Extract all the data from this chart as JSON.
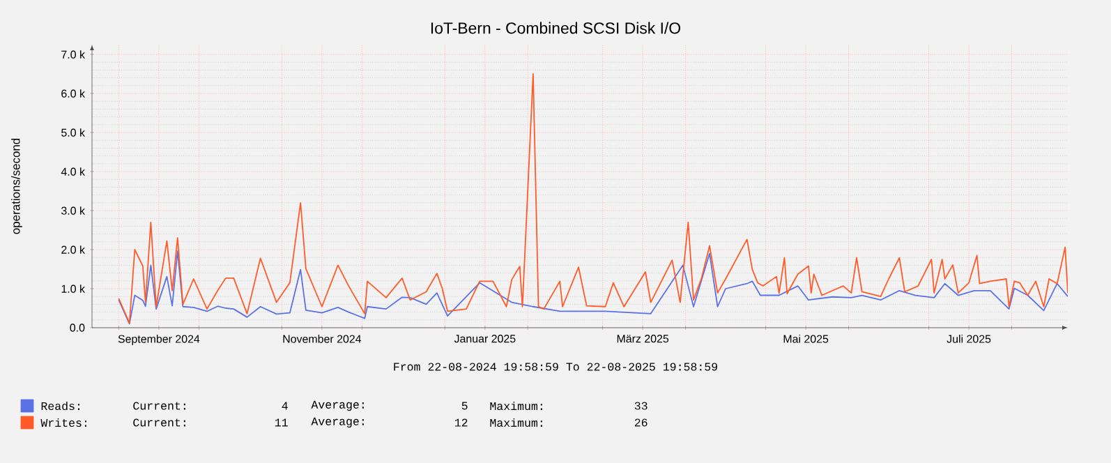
{
  "chart_data": {
    "type": "line",
    "title": "IoT-Bern - Combined SCSI Disk I/O",
    "ylabel": "operations/second",
    "xlim": [
      "2024-08-22",
      "2025-08-22"
    ],
    "xticks": [
      {
        "value": "2024-09-01",
        "label": null
      },
      {
        "value": "2024-09-16",
        "label": "September 2024"
      },
      {
        "value": "2024-10-01",
        "label": null
      },
      {
        "value": "2024-11-01",
        "label": null
      },
      {
        "value": "2024-11-16",
        "label": "November 2024"
      },
      {
        "value": "2024-12-01",
        "label": null
      },
      {
        "value": "2025-01-01",
        "label": null
      },
      {
        "value": "2025-01-16",
        "label": "Januar 2025"
      },
      {
        "value": "2025-02-01",
        "label": null
      },
      {
        "value": "2025-03-01",
        "label": null
      },
      {
        "value": "2025-03-16",
        "label": "März 2025"
      },
      {
        "value": "2025-04-01",
        "label": null
      },
      {
        "value": "2025-05-01",
        "label": null
      },
      {
        "value": "2025-05-16",
        "label": "Mai 2025"
      },
      {
        "value": "2025-06-01",
        "label": null
      },
      {
        "value": "2025-07-01",
        "label": null
      },
      {
        "value": "2025-07-16",
        "label": "Juli 2025"
      },
      {
        "value": "2025-08-01",
        "label": null
      }
    ],
    "ylim": [
      0,
      7250
    ],
    "yticks": [
      {
        "value": 0,
        "label": "0.0"
      },
      {
        "value": 1000,
        "label": "1.0 k"
      },
      {
        "value": 2000,
        "label": "2.0 k"
      },
      {
        "value": 3000,
        "label": "3.0 k"
      },
      {
        "value": 4000,
        "label": "4.0 k"
      },
      {
        "value": 5000,
        "label": "5.0 k"
      },
      {
        "value": 6000,
        "label": "6.0 k"
      },
      {
        "value": 7000,
        "label": "7.0 k"
      }
    ],
    "grid": true,
    "legend": "bottom",
    "marker": "none",
    "line_style": "solid",
    "series": [
      {
        "name": "Reads:",
        "color": "#5a72e8",
        "x": [
          "2024-09-01",
          "2024-09-05",
          "2024-09-07",
          "2024-09-10",
          "2024-09-11",
          "2024-09-13",
          "2024-09-15",
          "2024-09-19",
          "2024-09-21",
          "2024-09-23",
          "2024-09-25",
          "2024-09-29",
          "2024-10-04",
          "2024-10-08",
          "2024-10-11",
          "2024-10-14",
          "2024-10-19",
          "2024-10-24",
          "2024-10-30",
          "2024-11-04",
          "2024-11-08",
          "2024-11-10",
          "2024-11-16",
          "2024-11-22",
          "2024-11-26",
          "2024-12-02",
          "2024-12-03",
          "2024-12-10",
          "2024-12-16",
          "2024-12-19",
          "2024-12-25",
          "2024-12-29",
          "2025-01-02",
          "2025-01-14",
          "2025-01-26",
          "2025-02-03",
          "2025-02-13",
          "2025-03-02",
          "2025-03-19",
          "2025-03-31",
          "2025-04-04",
          "2025-04-10",
          "2025-04-13",
          "2025-04-16",
          "2025-04-24",
          "2025-04-26",
          "2025-04-29",
          "2025-05-06",
          "2025-05-13",
          "2025-05-17",
          "2025-05-26",
          "2025-06-02",
          "2025-06-06",
          "2025-06-13",
          "2025-06-20",
          "2025-06-26",
          "2025-07-03",
          "2025-07-07",
          "2025-07-12",
          "2025-07-18",
          "2025-07-24",
          "2025-07-31",
          "2025-08-02",
          "2025-08-07",
          "2025-08-13",
          "2025-08-18",
          "2025-08-22"
        ],
        "values": [
          710,
          100,
          830,
          700,
          550,
          1600,
          480,
          1310,
          560,
          1960,
          540,
          520,
          420,
          550,
          500,
          480,
          270,
          540,
          350,
          380,
          1490,
          450,
          380,
          520,
          400,
          240,
          540,
          480,
          780,
          770,
          600,
          890,
          300,
          1150,
          650,
          540,
          420,
          420,
          360,
          1600,
          540,
          1900,
          540,
          1000,
          1130,
          1190,
          830,
          830,
          1070,
          710,
          790,
          770,
          830,
          710,
          950,
          830,
          770,
          1130,
          830,
          950,
          950,
          480,
          1010,
          830,
          440,
          1130,
          800
        ]
      },
      {
        "name": "Writes:",
        "color": "#ff5a28",
        "x": [
          "2024-09-01",
          "2024-09-05",
          "2024-09-07",
          "2024-09-10",
          "2024-09-11",
          "2024-09-13",
          "2024-09-15",
          "2024-09-19",
          "2024-09-21",
          "2024-09-23",
          "2024-09-25",
          "2024-09-29",
          "2024-10-04",
          "2024-10-08",
          "2024-10-11",
          "2024-10-14",
          "2024-10-19",
          "2024-10-24",
          "2024-10-30",
          "2024-11-04",
          "2024-11-08",
          "2024-11-10",
          "2024-11-16",
          "2024-11-22",
          "2024-11-26",
          "2024-12-02",
          "2024-12-03",
          "2024-12-10",
          "2024-12-16",
          "2024-12-19",
          "2024-12-25",
          "2024-12-29",
          "2024-12-31",
          "2025-01-02",
          "2025-01-09",
          "2025-01-14",
          "2025-01-19",
          "2025-01-24",
          "2025-01-26",
          "2025-01-29",
          "2025-01-30",
          "2025-02-03",
          "2025-02-05",
          "2025-02-07",
          "2025-02-13",
          "2025-02-14",
          "2025-02-20",
          "2025-02-23",
          "2025-03-02",
          "2025-03-05",
          "2025-03-09",
          "2025-03-17",
          "2025-03-19",
          "2025-03-27",
          "2025-03-30",
          "2025-04-02",
          "2025-04-04",
          "2025-04-07",
          "2025-04-10",
          "2025-04-13",
          "2025-04-16",
          "2025-04-24",
          "2025-04-26",
          "2025-04-28",
          "2025-04-30",
          "2025-05-05",
          "2025-05-06",
          "2025-05-08",
          "2025-05-09",
          "2025-05-13",
          "2025-05-17",
          "2025-05-18",
          "2025-05-19",
          "2025-05-22",
          "2025-05-26",
          "2025-05-30",
          "2025-06-02",
          "2025-06-04",
          "2025-06-06",
          "2025-06-13",
          "2025-06-16",
          "2025-06-20",
          "2025-06-22",
          "2025-06-27",
          "2025-07-02",
          "2025-07-03",
          "2025-07-06",
          "2025-07-07",
          "2025-07-10",
          "2025-07-12",
          "2025-07-16",
          "2025-07-19",
          "2025-07-20",
          "2025-07-24",
          "2025-07-30",
          "2025-07-31",
          "2025-08-02",
          "2025-08-04",
          "2025-08-07",
          "2025-08-10",
          "2025-08-13",
          "2025-08-15",
          "2025-08-18",
          "2025-08-21",
          "2025-08-22"
        ],
        "values": [
          750,
          120,
          2000,
          1580,
          650,
          2700,
          540,
          2220,
          950,
          2300,
          600,
          1250,
          480,
          950,
          1270,
          1270,
          360,
          1780,
          650,
          1150,
          3200,
          1510,
          540,
          1600,
          1070,
          360,
          1190,
          770,
          1270,
          710,
          920,
          1390,
          1010,
          420,
          480,
          1190,
          1190,
          540,
          1230,
          1570,
          540,
          6500,
          540,
          480,
          1190,
          540,
          1550,
          560,
          540,
          1150,
          540,
          1430,
          650,
          1730,
          650,
          2700,
          710,
          1270,
          2100,
          890,
          1250,
          2260,
          1490,
          1150,
          1070,
          1310,
          880,
          1790,
          870,
          1370,
          1580,
          890,
          1370,
          830,
          950,
          1070,
          890,
          1790,
          920,
          800,
          1250,
          1790,
          920,
          1070,
          1750,
          890,
          1750,
          1250,
          1610,
          890,
          1150,
          1850,
          1130,
          1190,
          1250,
          540,
          1190,
          1150,
          830,
          1190,
          540,
          1250,
          1130,
          2060,
          890
        ]
      }
    ],
    "annotations": [
      "From 22-08-2024 19:58:59 To 22-08-2025 19:58:59",
      "Current:",
      "4",
      "Average:",
      "5",
      "Maximum:",
      "33",
      "Current:",
      "11",
      "Average:",
      "12",
      "Maximum:",
      "26"
    ]
  }
}
